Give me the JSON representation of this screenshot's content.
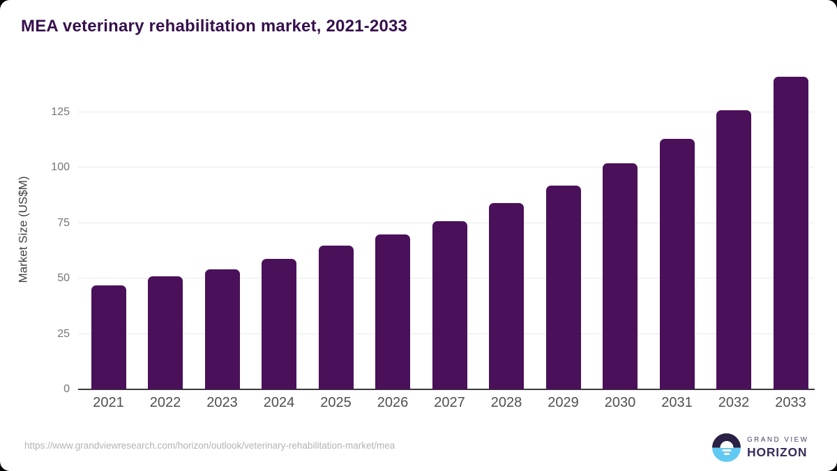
{
  "title": "MEA veterinary rehabilitation market, 2021-2033",
  "chart_data": {
    "type": "bar",
    "title": "MEA veterinary rehabilitation market, 2021-2033",
    "categories": [
      "2021",
      "2022",
      "2023",
      "2024",
      "2025",
      "2026",
      "2027",
      "2028",
      "2029",
      "2030",
      "2031",
      "2032",
      "2033"
    ],
    "values": [
      47,
      51,
      54,
      59,
      65,
      70,
      76,
      84,
      92,
      102,
      113,
      126,
      141
    ],
    "xlabel": "",
    "ylabel": "Market Size (US$M)",
    "yticks": [
      0,
      25,
      50,
      75,
      100,
      125
    ],
    "ylim": [
      0,
      144
    ],
    "grid": "horizontal",
    "legend": "none",
    "bar_color": "#4a1059"
  },
  "footer": {
    "source_url": "https://www.grandviewresearch.com/horizon/outlook/veterinary-rehabilitation-market/mea",
    "logo": {
      "line1": "GRAND VIEW",
      "line2": "HORIZON"
    }
  },
  "colors": {
    "bar": "#4a1059",
    "title_text": "#36104d",
    "y_tick_text": "#757575",
    "x_tick_text": "#4f4f4f",
    "gridline": "#e9e9ec",
    "baseline": "#3a3a3a",
    "url_text": "#b3b3b6",
    "logo_dark_half": "#2b2144",
    "logo_blue_half": "#62c9f2",
    "logo_wordmark": "#3a2d5b",
    "logo_subtext": "#4a4466"
  }
}
